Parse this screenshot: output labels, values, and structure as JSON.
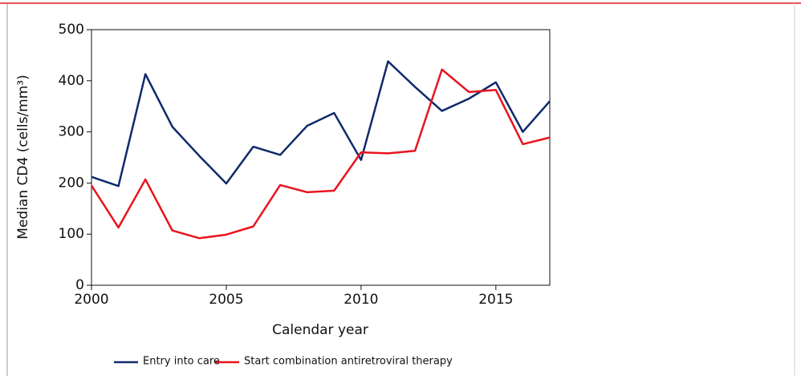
{
  "chart_data": {
    "type": "line",
    "x": [
      2000,
      2001,
      2002,
      2003,
      2004,
      2005,
      2006,
      2007,
      2008,
      2009,
      2010,
      2011,
      2012,
      2013,
      2014,
      2015,
      2016,
      2017
    ],
    "series": [
      {
        "name": "Entry into care",
        "color": "#0f2a6b",
        "values": [
          212,
          194,
          413,
          310,
          253,
          199,
          271,
          255,
          312,
          337,
          245,
          438,
          388,
          341,
          365,
          397,
          300,
          360
        ]
      },
      {
        "name": "Start combination antiretroviral therapy",
        "color": "#e8141f",
        "values": [
          195,
          113,
          207,
          107,
          92,
          99,
          115,
          196,
          182,
          185,
          260,
          258,
          263,
          422,
          378,
          382,
          276,
          289
        ]
      }
    ],
    "xlabel": "Calendar year",
    "ylabel": "Median CD4 (cells/mm³)",
    "xlim": [
      2000,
      2017
    ],
    "xticks": [
      2000,
      2005,
      2010,
      2015
    ],
    "ylim": [
      0,
      500
    ],
    "yticks": [
      0,
      100,
      200,
      300,
      400,
      500
    ]
  }
}
